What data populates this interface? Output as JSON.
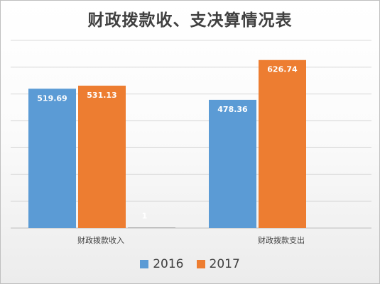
{
  "chart_data": {
    "type": "bar",
    "title": "财政拨款收、支决算情况表",
    "categories": [
      "财政拨款收入",
      "财政拨款支出"
    ],
    "series": [
      {
        "name": "2016",
        "color": "#5b9bd5",
        "values": [
          519.69,
          478.36
        ]
      },
      {
        "name": "2017",
        "color": "#ed7d31",
        "values": [
          531.13,
          626.74
        ]
      }
    ],
    "extra_labels": [
      {
        "text": "1",
        "category": 0,
        "value": 1
      }
    ],
    "xlabel": "",
    "ylabel": "",
    "ylim": [
      0,
      700
    ],
    "grid": true,
    "legend_position": "bottom"
  }
}
